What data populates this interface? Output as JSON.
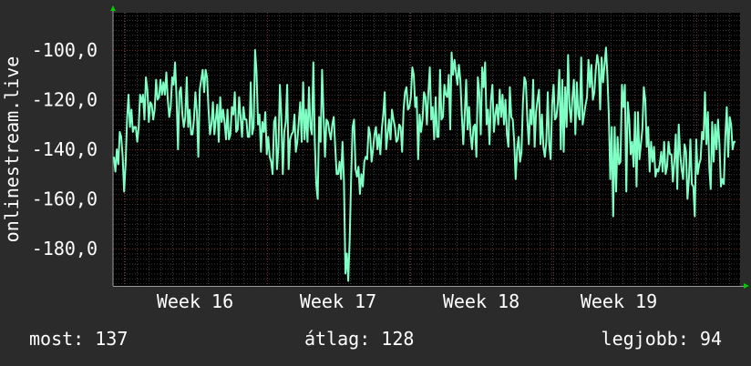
{
  "chart_data": {
    "type": "line",
    "ylabel": "onlinestream.live",
    "xlabel": "",
    "x_tick_labels": [
      "Week 16",
      "Week 17",
      "Week 18",
      "Week 19"
    ],
    "y_tick_labels": [
      "-100,0",
      "-120,0",
      "-140,0",
      "-160,0",
      "-180,0"
    ],
    "y_ticks": [
      -100,
      -120,
      -140,
      -160,
      -180
    ],
    "ylim": [
      -195,
      -85
    ],
    "grid": true,
    "colors": {
      "background": "#2b2b2b",
      "plot_background": "#000000",
      "grid_minor": "#3a3a3a",
      "grid_major": "#7a2a2a",
      "line": "#7fffc4",
      "axis_arrow": "#00cc00",
      "text": "#ffffff"
    },
    "series": [
      {
        "values": [
          -143,
          -149,
          -140,
          -146,
          -133,
          -135,
          -143,
          -157,
          -146,
          -128,
          -118,
          -131,
          -124,
          -133,
          -131,
          -131,
          -137,
          -131,
          -118,
          -121,
          -118,
          -128,
          -111,
          -116,
          -129,
          -121,
          -122,
          -128,
          -124,
          -112,
          -120,
          -119,
          -112,
          -118,
          -113,
          -118,
          -109,
          -120,
          -127,
          -123,
          -111,
          -114,
          -105,
          -119,
          -140,
          -117,
          -115,
          -126,
          -131,
          -127,
          -111,
          -131,
          -124,
          -134,
          -134,
          -128,
          -117,
          -125,
          -143,
          -116,
          -112,
          -108,
          -117,
          -108,
          -111,
          -124,
          -134,
          -130,
          -121,
          -134,
          -128,
          -122,
          -137,
          -119,
          -129,
          -124,
          -129,
          -136,
          -124,
          -136,
          -134,
          -123,
          -126,
          -117,
          -133,
          -132,
          -119,
          -127,
          -135,
          -123,
          -128,
          -128,
          -135,
          -135,
          -113,
          -134,
          -131,
          -100,
          -109,
          -130,
          -126,
          -141,
          -129,
          -133,
          -125,
          -142,
          -135,
          -143,
          -145,
          -150,
          -129,
          -127,
          -148,
          -139,
          -114,
          -127,
          -150,
          -133,
          -129,
          -114,
          -148,
          -136,
          -134,
          -133,
          -126,
          -141,
          -137,
          -129,
          -121,
          -137,
          -113,
          -136,
          -124,
          -137,
          -115,
          -131,
          -134,
          -105,
          -137,
          -154,
          -160,
          -127,
          -137,
          -108,
          -126,
          -143,
          -128,
          -129,
          -133,
          -136,
          -130,
          -127,
          -139,
          -150,
          -150,
          -145,
          -152,
          -137,
          -153,
          -190,
          -182,
          -193,
          -176,
          -151,
          -131,
          -128,
          -148,
          -151,
          -147,
          -158,
          -150,
          -155,
          -145,
          -143,
          -144,
          -131,
          -134,
          -145,
          -140,
          -134,
          -131,
          -140,
          -134,
          -142,
          -132,
          -126,
          -117,
          -140,
          -134,
          -128,
          -136,
          -124,
          -128,
          -131,
          -137,
          -136,
          -130,
          -131,
          -141,
          -124,
          -117,
          -115,
          -124,
          -123,
          -119,
          -107,
          -110,
          -123,
          -119,
          -144,
          -126,
          -133,
          -128,
          -117,
          -119,
          -130,
          -117,
          -107,
          -128,
          -123,
          -136,
          -119,
          -135,
          -135,
          -108,
          -128,
          -127,
          -114,
          -118,
          -119,
          -110,
          -132,
          -101,
          -110,
          -104,
          -109,
          -114,
          -106,
          -112,
          -126,
          -138,
          -126,
          -112,
          -132,
          -123,
          -134,
          -140,
          -131,
          -130,
          -143,
          -111,
          -117,
          -134,
          -107,
          -115,
          -105,
          -130,
          -124,
          -138,
          -120,
          -114,
          -133,
          -126,
          -122,
          -130,
          -116,
          -127,
          -118,
          -130,
          -120,
          -134,
          -139,
          -115,
          -127,
          -128,
          -137,
          -152,
          -140,
          -135,
          -145,
          -141,
          -121,
          -111,
          -113,
          -128,
          -138,
          -124,
          -130,
          -112,
          -139,
          -125,
          -120,
          -116,
          -138,
          -126,
          -139,
          -143,
          -137,
          -117,
          -138,
          -144,
          -122,
          -114,
          -128,
          -127,
          -121,
          -108,
          -140,
          -112,
          -141,
          -115,
          -131,
          -102,
          -123,
          -129,
          -119,
          -112,
          -134,
          -113,
          -126,
          -128,
          -103,
          -130,
          -126,
          -122,
          -119,
          -104,
          -115,
          -106,
          -120,
          -117,
          -108,
          -102,
          -106,
          -124,
          -103,
          -113,
          -106,
          -99,
          -110,
          -126,
          -152,
          -131,
          -167,
          -131,
          -157,
          -135,
          -146,
          -145,
          -114,
          -123,
          -114,
          -157,
          -121,
          -128,
          -142,
          -137,
          -147,
          -125,
          -155,
          -125,
          -144,
          -138,
          -132,
          -115,
          -120,
          -139,
          -131,
          -149,
          -137,
          -145,
          -139,
          -151,
          -148,
          -149,
          -146,
          -141,
          -149,
          -137,
          -150,
          -147,
          -137,
          -142,
          -142,
          -153,
          -145,
          -134,
          -156,
          -130,
          -142,
          -148,
          -152,
          -138,
          -141,
          -160,
          -152,
          -136,
          -154,
          -155,
          -167,
          -136,
          -150,
          -146,
          -144,
          -133,
          -136,
          -117,
          -138,
          -125,
          -148,
          -156,
          -129,
          -145,
          -130,
          -140,
          -128,
          -138,
          -155,
          -152,
          -154,
          -135,
          -123,
          -143,
          -127,
          -130,
          -140,
          -137,
          -137
        ]
      }
    ]
  },
  "stats": {
    "current": "most: 137",
    "average": "átlag: 128",
    "best": "legjobb: 94"
  }
}
